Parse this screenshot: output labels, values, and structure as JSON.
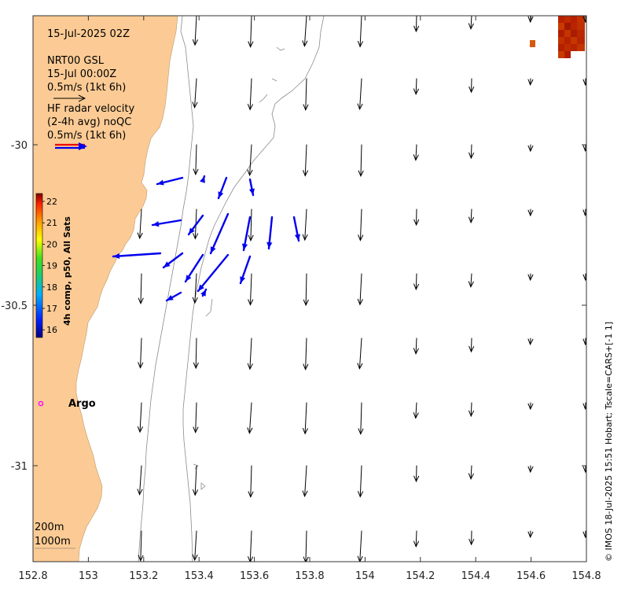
{
  "map": {
    "timestamp": "15-Jul-2025 02Z",
    "legend_model": [
      "NRT00 GSL",
      "15-Jul 00:00Z",
      "0.5m/s (1kt 6h)"
    ],
    "legend_radar": [
      "HF radar velocity",
      "(2-4h avg) noQC",
      "0.5m/s (1kt 6h)"
    ],
    "argo_label": "Argo",
    "depth_labels": [
      "200m",
      "1000m"
    ],
    "credit": "© IMOS 18-Jul-2025 15:51 Hobart; Tscale=CARS+[-1 1]",
    "colorbar": {
      "title": "4h comp, p50, All Sats",
      "ticks": [
        "22",
        "21",
        "20",
        "19",
        "18",
        "17",
        "16"
      ],
      "min": 16,
      "max": 22
    },
    "x_ticks": [
      "152.8",
      "153",
      "153.2",
      "153.4",
      "153.6",
      "153.8",
      "154",
      "154.2",
      "154.4",
      "154.6",
      "154.8"
    ],
    "y_ticks": [
      "-30",
      "-30.5",
      "-31"
    ],
    "colors": {
      "land": "#fccb95",
      "model_arrow": "#000000",
      "radar_arrow": "#0000ee",
      "argo": "#ff00ff",
      "sst_hot": "#b72000",
      "sst_warm": "#d45a10"
    }
  }
}
